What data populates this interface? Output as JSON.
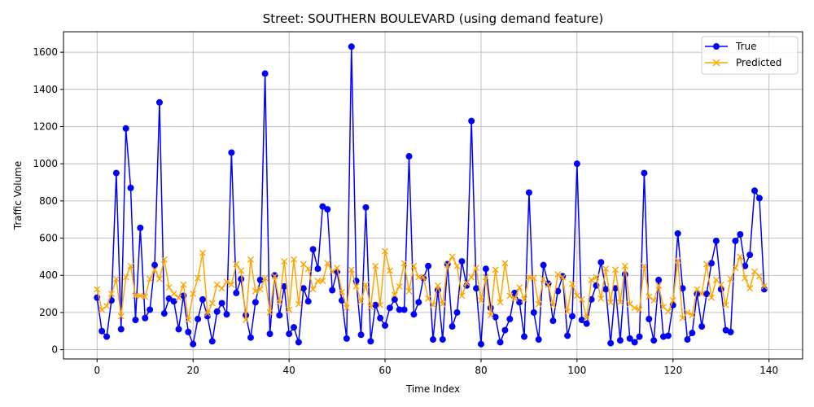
{
  "chart_data": {
    "type": "line",
    "title": "Street: SOUTHERN BOULEVARD (using demand feature)",
    "xlabel": "Time Index",
    "ylabel": "Traffic Volume",
    "xlim": [
      -7,
      147
    ],
    "ylim": [
      -50,
      1710
    ],
    "x_ticks": [
      0,
      20,
      40,
      60,
      80,
      100,
      120,
      140
    ],
    "y_ticks": [
      0,
      200,
      400,
      600,
      800,
      1000,
      1200,
      1400,
      1600
    ],
    "grid": true,
    "legend_position": "top-right",
    "series": [
      {
        "name": "True",
        "color": "#0000ff",
        "marker": "circle",
        "values": [
          280,
          100,
          70,
          265,
          950,
          110,
          1190,
          870,
          160,
          655,
          170,
          215,
          455,
          1330,
          195,
          275,
          260,
          110,
          290,
          95,
          30,
          165,
          270,
          180,
          45,
          205,
          250,
          190,
          1060,
          305,
          380,
          185,
          65,
          255,
          375,
          1485,
          85,
          400,
          185,
          340,
          85,
          120,
          40,
          330,
          260,
          540,
          435,
          770,
          755,
          320,
          420,
          265,
          60,
          1630,
          370,
          80,
          765,
          45,
          240,
          170,
          130,
          225,
          270,
          215,
          215,
          1040,
          190,
          255,
          385,
          450,
          55,
          320,
          55,
          460,
          125,
          200,
          475,
          345,
          1230,
          330,
          30,
          435,
          225,
          175,
          40,
          105,
          165,
          305,
          255,
          70,
          845,
          200,
          55,
          455,
          355,
          155,
          315,
          395,
          75,
          180,
          1000,
          160,
          140,
          270,
          345,
          470,
          325,
          35,
          330,
          50,
          405,
          60,
          40,
          70,
          950,
          165,
          50,
          375,
          70,
          75,
          240,
          625,
          330,
          55,
          90,
          300,
          125,
          300,
          465,
          585,
          325,
          105,
          95,
          585,
          620,
          450,
          510,
          855,
          815,
          325
        ]
      },
      {
        "name": "Predicted",
        "color": "#ffa500",
        "marker": "x",
        "values": [
          325,
          215,
          235,
          300,
          380,
          180,
          390,
          450,
          290,
          290,
          285,
          380,
          430,
          380,
          485,
          335,
          300,
          280,
          350,
          160,
          300,
          385,
          520,
          195,
          250,
          350,
          330,
          365,
          350,
          460,
          425,
          160,
          485,
          315,
          325,
          385,
          200,
          395,
          255,
          475,
          215,
          485,
          245,
          460,
          435,
          325,
          370,
          370,
          465,
          420,
          440,
          310,
          225,
          430,
          340,
          260,
          350,
          230,
          450,
          240,
          530,
          425,
          295,
          340,
          465,
          315,
          450,
          390,
          390,
          275,
          240,
          345,
          245,
          455,
          500,
          450,
          290,
          360,
          390,
          440,
          265,
          390,
          185,
          430,
          255,
          465,
          290,
          275,
          335,
          270,
          390,
          385,
          245,
          380,
          350,
          240,
          405,
          390,
          205,
          355,
          290,
          270,
          170,
          375,
          390,
          275,
          435,
          255,
          430,
          255,
          450,
          245,
          225,
          215,
          450,
          285,
          265,
          345,
          230,
          205,
          265,
          480,
          170,
          200,
          185,
          325,
          300,
          460,
          280,
          375,
          350,
          240,
          380,
          440,
          500,
          385,
          330,
          420,
          395,
          340
        ]
      }
    ]
  }
}
